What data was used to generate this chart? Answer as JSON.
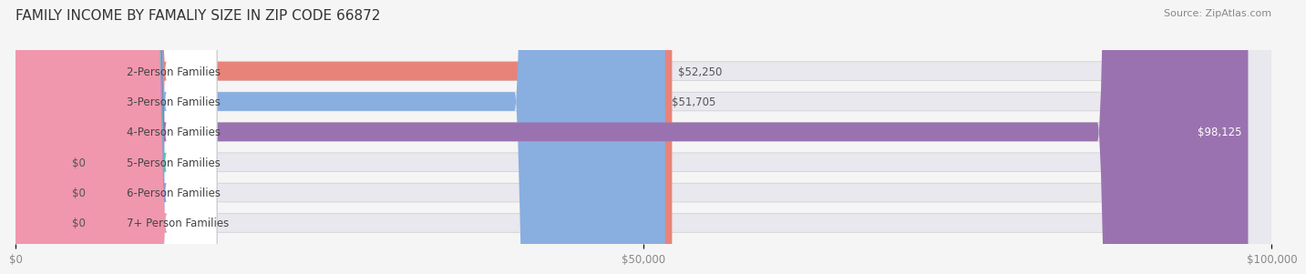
{
  "title": "FAMILY INCOME BY FAMALIY SIZE IN ZIP CODE 66872",
  "source": "Source: ZipAtlas.com",
  "categories": [
    "2-Person Families",
    "3-Person Families",
    "4-Person Families",
    "5-Person Families",
    "6-Person Families",
    "7+ Person Families"
  ],
  "values": [
    52250,
    51705,
    98125,
    0,
    0,
    0
  ],
  "bar_colors": [
    "#E8837A",
    "#89AEE0",
    "#9B72B0",
    "#5BBFB5",
    "#9999D0",
    "#F097AD"
  ],
  "label_colors": [
    "#E8837A",
    "#89AEE0",
    "#9B72B0",
    "#5BBFB5",
    "#9999D0",
    "#F097AD"
  ],
  "value_labels": [
    "$52,250",
    "$51,705",
    "$98,125",
    "$0",
    "$0",
    "$0"
  ],
  "xlim": [
    0,
    100000
  ],
  "xticks": [
    0,
    50000,
    100000
  ],
  "xtick_labels": [
    "$0",
    "$50,000",
    "$100,000"
  ],
  "background_color": "#f5f5f5",
  "bar_background_color": "#e8e8ee",
  "title_fontsize": 11,
  "label_fontsize": 8.5,
  "value_fontsize": 8.5,
  "source_fontsize": 8
}
